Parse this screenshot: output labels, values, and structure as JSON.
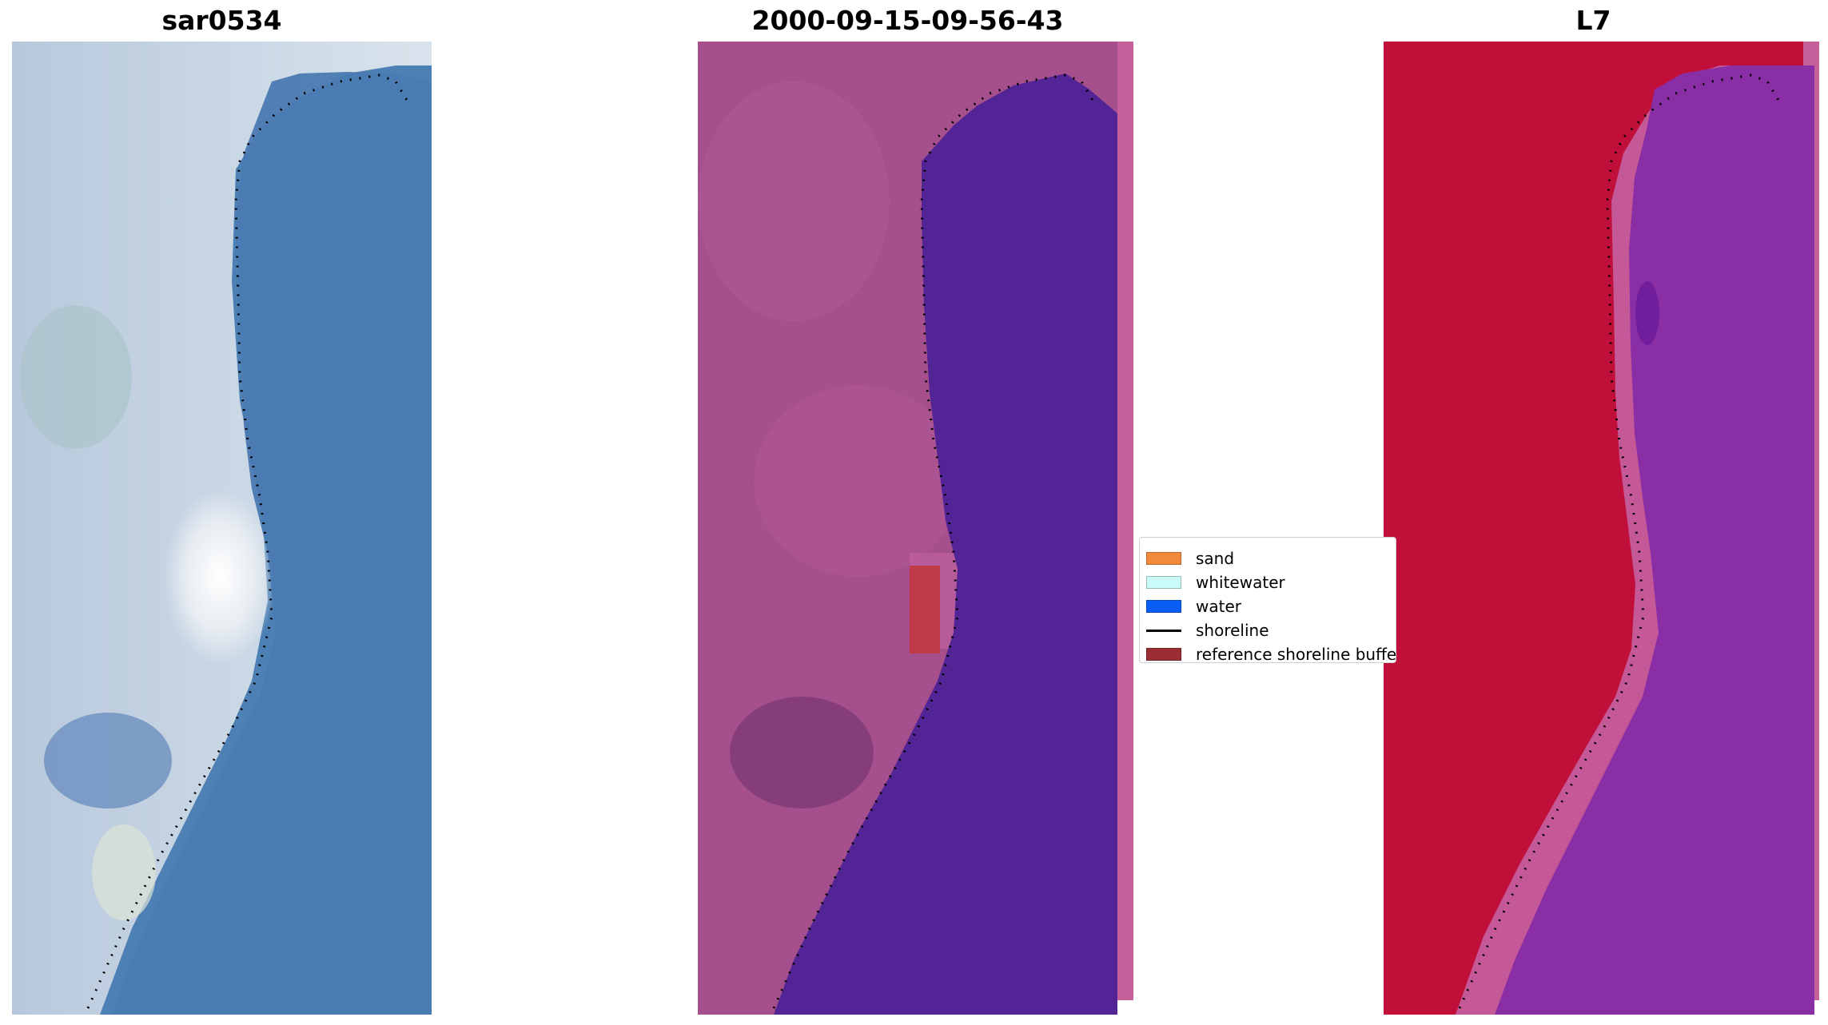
{
  "panels": [
    {
      "title": "sar0534"
    },
    {
      "title": "2000-09-15-09-56-43"
    },
    {
      "title": "L7"
    }
  ],
  "legend": {
    "items": [
      {
        "label": "sand",
        "color": "#f28a3c",
        "kind": "patch"
      },
      {
        "label": "whitewater",
        "color": "#c9fbf8",
        "kind": "patch"
      },
      {
        "label": "water",
        "color": "#0a5ef5",
        "kind": "patch"
      },
      {
        "label": "shoreline",
        "color": "#000000",
        "kind": "line"
      },
      {
        "label": "reference shoreline buffer",
        "color": "#9b2d35",
        "kind": "patch"
      }
    ]
  },
  "colors": {
    "rgb_water": "#4a7fb5",
    "rgb_land": "#c9d8e6",
    "classified_land": "#a5508c",
    "classified_water": "#532495",
    "classified_buffer": "#c03a48",
    "ndwi_land": "#c0103a",
    "ndwi_water": "#8a2ea6",
    "ndwi_edge": "#c55896"
  }
}
